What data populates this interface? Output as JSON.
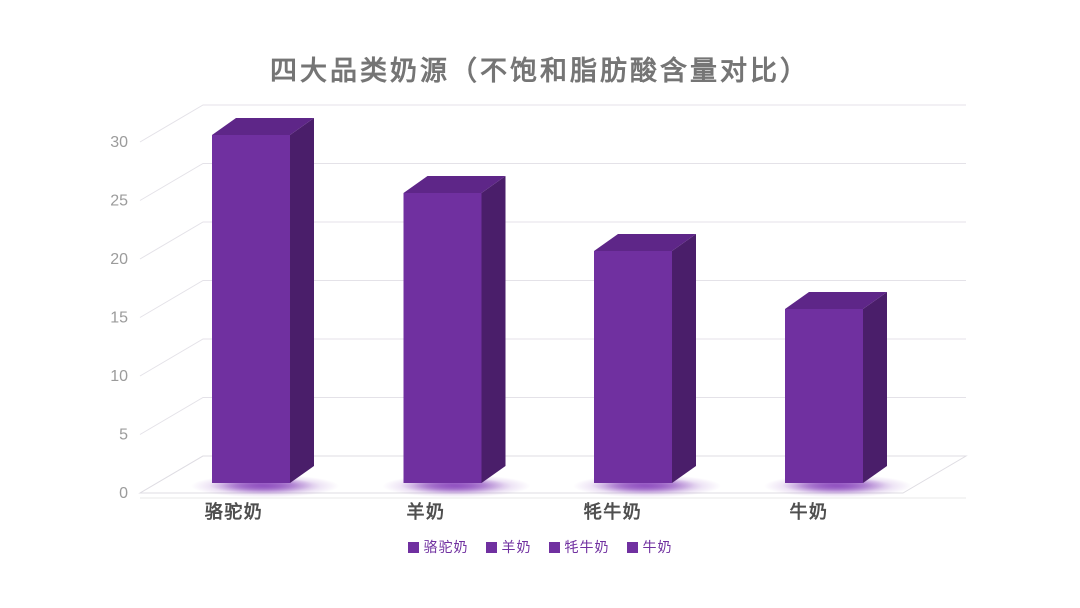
{
  "chart_data": {
    "type": "bar",
    "variant": "3d-column",
    "title": "四大品类奶源（不饱和脂肪酸含量对比）",
    "categories": [
      "骆驼奶",
      "羊奶",
      "牦牛奶",
      "牛奶"
    ],
    "values": [
      30,
      25,
      20,
      15
    ],
    "y_ticks": [
      0,
      5,
      10,
      15,
      20,
      25,
      30
    ],
    "ylim": [
      0,
      30
    ],
    "grid": true,
    "legend_entries": [
      "骆驼奶",
      "羊奶",
      "牦牛奶",
      "牛奶"
    ],
    "legend_position": "bottom"
  },
  "colors": {
    "bar_front": "#7030A0",
    "bar_top": "#5E2688",
    "bar_side": "#4A1E6A",
    "glow": "#9050C0",
    "title_text": "#757575",
    "tick_text": "#9B9B9B",
    "category_text": "#4F4F4F",
    "legend_text": "#7030A0",
    "legend_marker": "#7030A0",
    "gridline": "#E4E2E8",
    "floor_line": "#DFDDE3",
    "baseline": "#E9E9E9"
  }
}
